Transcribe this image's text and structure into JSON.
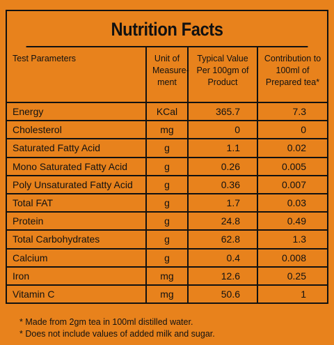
{
  "title": "Nutrition Facts",
  "table": {
    "header": [
      "Test Parameters",
      "Unit of Measure-ment",
      "Typical Value Per 100gm of Product",
      "Contribution to 100ml of Prepared tea*"
    ],
    "rows": [
      [
        "Energy",
        "KCal",
        "365.7",
        "7.3"
      ],
      [
        "Cholesterol",
        "mg",
        "0",
        "0"
      ],
      [
        "Saturated Fatty Acid",
        "g",
        "1.1",
        "0.02"
      ],
      [
        "Mono Saturated Fatty Acid",
        "g",
        "0.26",
        "0.005"
      ],
      [
        "Poly Unsaturated Fatty Acid",
        "g",
        "0.36",
        "0.007"
      ],
      [
        "Total FAT",
        "g",
        "1.7",
        "0.03"
      ],
      [
        "Protein",
        "g",
        "24.8",
        "0.49"
      ],
      [
        "Total Carbohydrates",
        "g",
        "62.8",
        "1.3"
      ],
      [
        "Calcium",
        "g",
        "0.4",
        "0.008"
      ],
      [
        "Iron",
        "mg",
        "12.6",
        "0.25"
      ],
      [
        "Vitamin C",
        "mg",
        "50.6",
        "1"
      ]
    ]
  },
  "footnotes": [
    "* Made from 2gm tea in 100ml distilled water.",
    "* Does not include values of added milk and sugar."
  ]
}
